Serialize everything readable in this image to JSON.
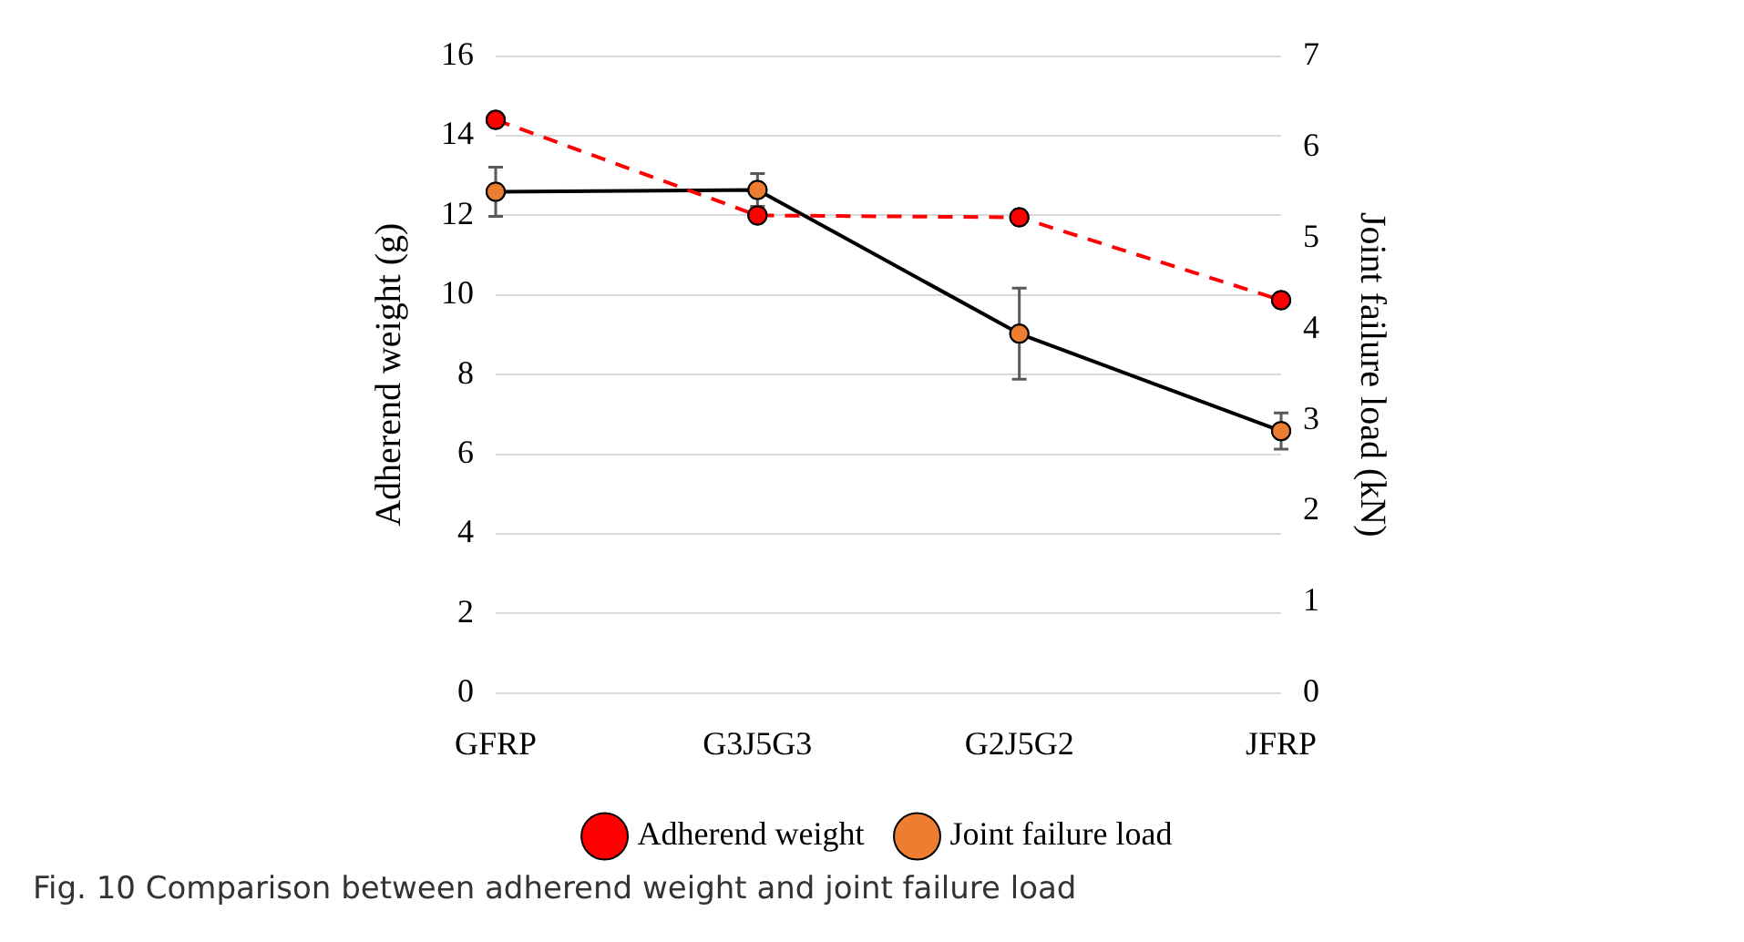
{
  "chart_data": {
    "type": "line",
    "categories": [
      "GFRP",
      "G3J5G3",
      "G2J5G2",
      "JFRP"
    ],
    "series": [
      {
        "name": "Adherend weight",
        "color": "#ff0000",
        "values": [
          14.4,
          12.0,
          11.95,
          9.87
        ],
        "line_style": "dashed"
      },
      {
        "name": "Joint failure load",
        "color": "#000000",
        "values": [
          5.51,
          5.53,
          3.95,
          2.88
        ],
        "axis": "y2",
        "line_style": "solid",
        "errors": [
          0.27,
          0.18,
          0.5,
          0.2
        ]
      }
    ],
    "ylabel": "Adherend weight (g)",
    "y2label": "Joint failure load (kN)",
    "ylim": [
      0,
      16
    ],
    "yticks": [
      0,
      2,
      4,
      6,
      8,
      10,
      12,
      14,
      16
    ],
    "y2lim": [
      0,
      7
    ],
    "y2ticks": [
      0,
      1,
      2,
      3,
      4,
      5,
      6,
      7
    ],
    "grid": "y",
    "legend": "bottom",
    "marker": "circle",
    "annotations": [
      "Fig. 10  Comparison between adherend weight and joint failure load"
    ]
  }
}
